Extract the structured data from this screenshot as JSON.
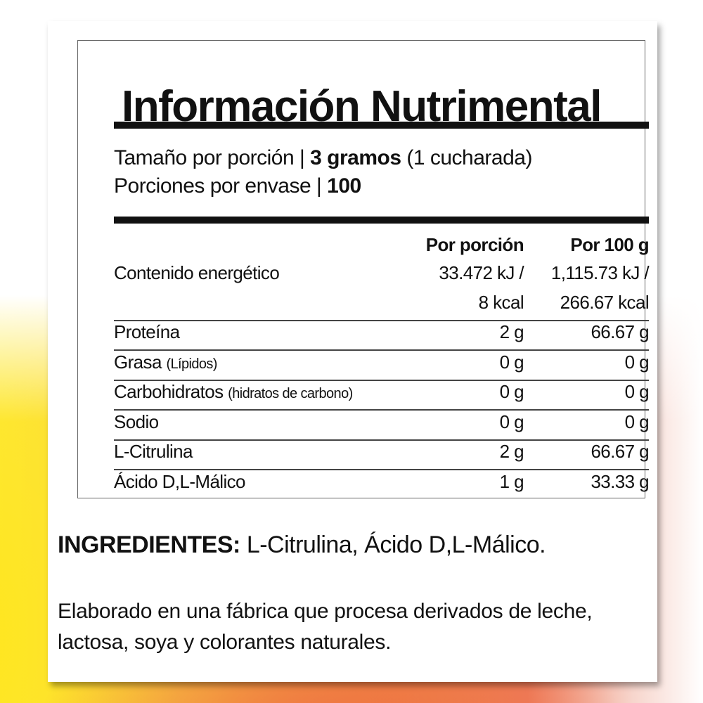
{
  "title": "Información Nutrimental",
  "serving": {
    "size_label": "Tamaño por porción |",
    "size_value": "3 gramos",
    "size_note": "(1 cucharada)",
    "servings_label": "Porciones por envase |",
    "servings_value": "100"
  },
  "table": {
    "headers": [
      "Por porción",
      "Por 100 g"
    ],
    "energy": {
      "label": "Contenido energético",
      "per_serving_kj": "33.472 kJ /",
      "per_100_kj": "1,115.73 kJ /",
      "per_serving_kcal": "8 kcal",
      "per_100_kcal": "266.67 kcal"
    },
    "rows": [
      {
        "label": "Proteína",
        "note": "",
        "per_serving": "2 g",
        "per_100": "66.67 g"
      },
      {
        "label": "Grasa",
        "note": "(Lípidos)",
        "per_serving": "0 g",
        "per_100": "0 g"
      },
      {
        "label": "Carbohidratos",
        "note": "(hidratos de carbono)",
        "per_serving": "0 g",
        "per_100": "0 g"
      },
      {
        "label": "Sodio",
        "note": "",
        "per_serving": "0 g",
        "per_100": "0 g"
      },
      {
        "label": "L-Citrulina",
        "note": "",
        "per_serving": "2 g",
        "per_100": "66.67 g"
      },
      {
        "label": "Ácido D,L-Málico",
        "note": "",
        "per_serving": "1 g",
        "per_100": "33.33 g"
      }
    ]
  },
  "ingredients": {
    "label": "INGREDIENTES:",
    "text": "L-Citrulina, Ácido D,L-Málico."
  },
  "note": "Elaborado en una fábrica que procesa derivados de leche, lactosa, soya y colorantes naturales."
}
